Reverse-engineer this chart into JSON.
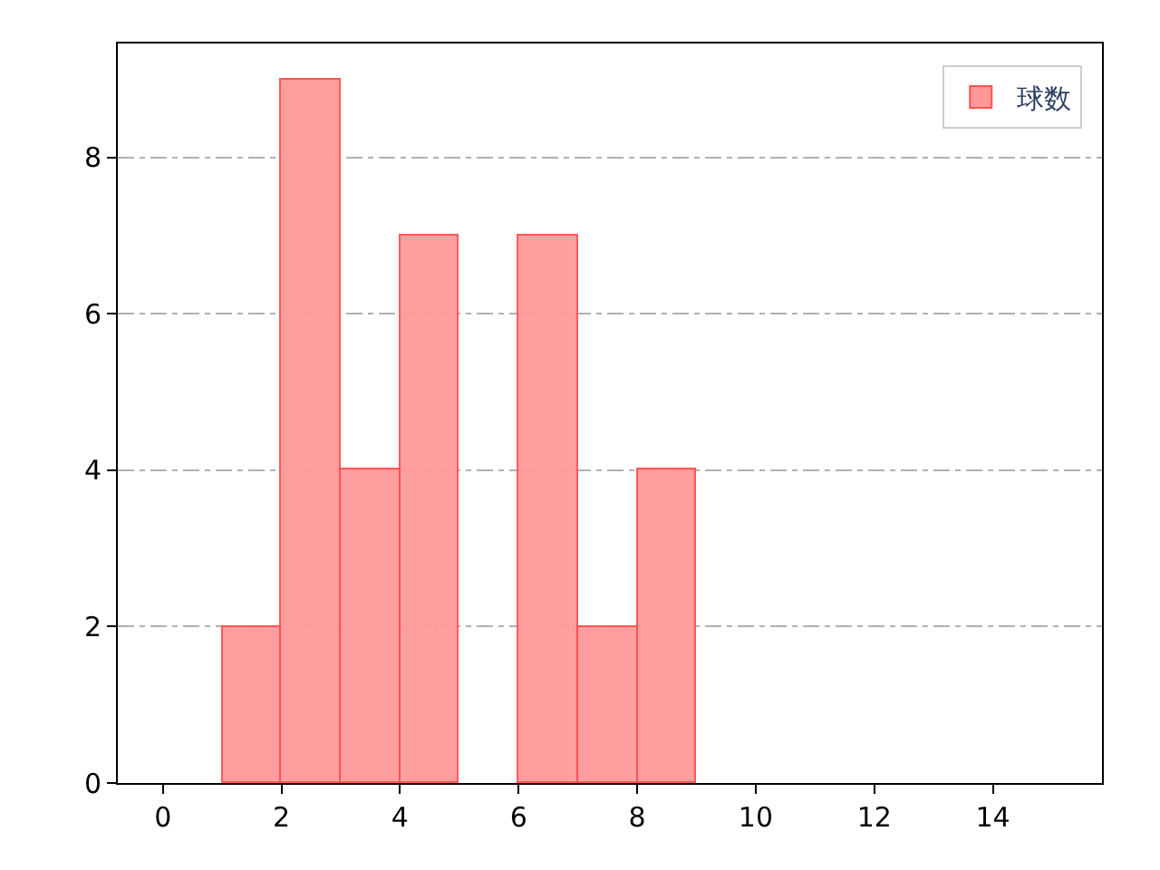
{
  "chart_data": {
    "type": "histogram",
    "bins": [
      1,
      2,
      3,
      4,
      5,
      6,
      7,
      8,
      9
    ],
    "series": [
      {
        "name": "球数",
        "color": "#ff9999",
        "values": [
          2,
          9,
          4,
          7,
          0,
          7,
          2,
          4
        ]
      }
    ],
    "xlim": [
      -0.76,
      15.84
    ],
    "xticks": [
      0,
      2,
      4,
      6,
      8,
      10,
      12,
      14
    ],
    "ylim": [
      0,
      9.46
    ],
    "yticks": [
      0,
      2,
      4,
      6,
      8
    ],
    "grid": "y",
    "legend": "top right"
  }
}
